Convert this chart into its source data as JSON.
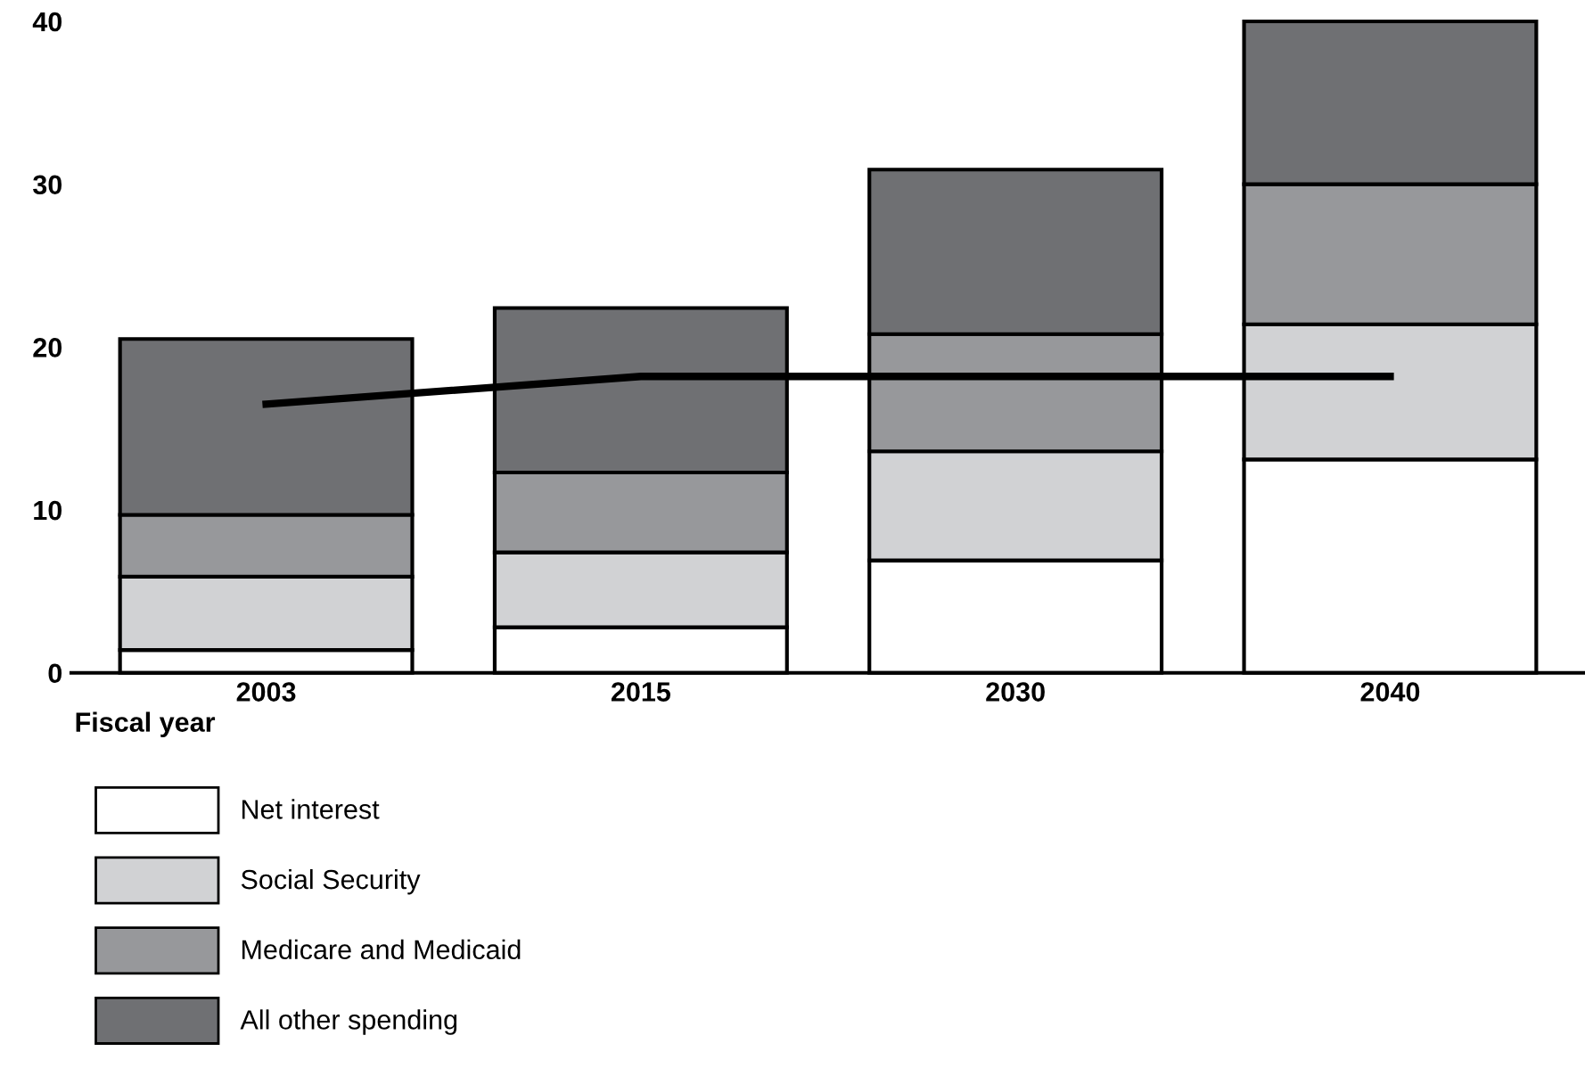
{
  "chart_data": {
    "type": "bar",
    "stacked": true,
    "xlabel": "Fiscal year",
    "categories": [
      "2003",
      "2015",
      "2030",
      "2040"
    ],
    "series": [
      {
        "name": "Net interest",
        "color": "#ffffff",
        "values": [
          1.4,
          2.8,
          6.9,
          13.1
        ]
      },
      {
        "name": "Social Security",
        "color": "#d1d2d4",
        "values": [
          4.5,
          4.6,
          6.7,
          8.3
        ]
      },
      {
        "name": "Medicare and Medicaid",
        "color": "#97989b",
        "values": [
          3.8,
          4.9,
          7.2,
          8.6
        ]
      },
      {
        "name": "All other spending",
        "color": "#6f7073",
        "values": [
          10.8,
          10.1,
          10.1,
          10.0
        ]
      },
      {
        "type": "line",
        "color": "#000000",
        "values": [
          16.5,
          18.2,
          18.2,
          18.2
        ]
      }
    ],
    "ylim": [
      0,
      40
    ],
    "yticks": [
      0,
      10,
      20,
      30,
      40
    ],
    "grid": false,
    "legend": "bottom left"
  }
}
